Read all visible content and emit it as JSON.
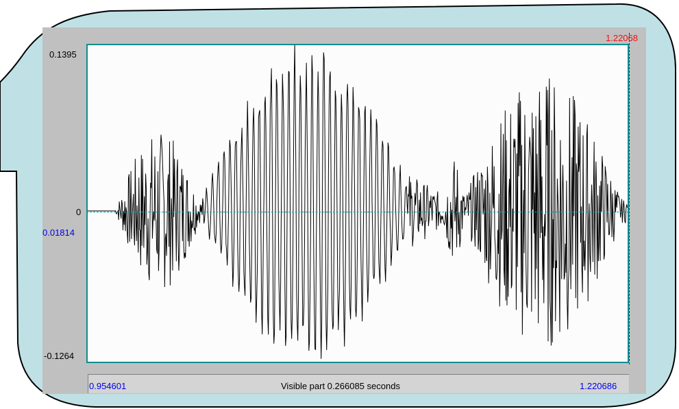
{
  "signal": {
    "y_max": "0.1395",
    "y_zero": "0",
    "y_cursor": "0.01814",
    "y_min": "-0.1264",
    "cursor_time": "1.22068",
    "start_time": "0.954601",
    "end_time": "1.220686",
    "visible_part": "Visible part 0.266085 seconds"
  },
  "colors": {
    "bubble_fill": "#bfe1e5",
    "panel": "#c0c0c0",
    "plot_border": "#0f8d8d",
    "waveform": "#000000",
    "cursor": "#1a1aee",
    "cursor_time": "#ee1111"
  }
}
